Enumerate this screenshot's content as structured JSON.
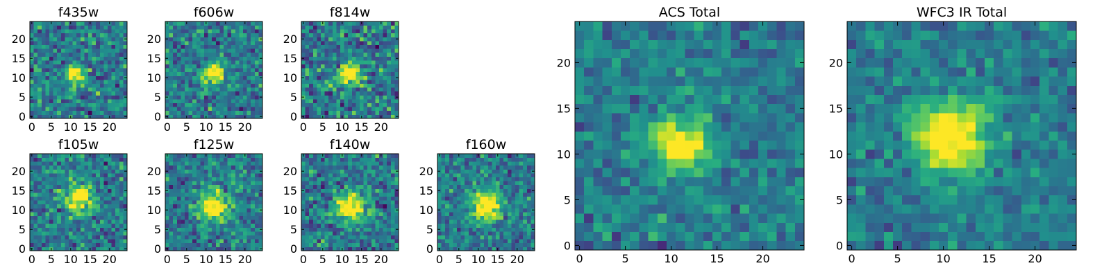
{
  "chart_data": [
    {
      "type": "heatmap",
      "title": "f435w",
      "colormap": "viridis",
      "grid_size": 25,
      "peak": [
        11,
        11
      ],
      "spread": 1.6,
      "noise": 0.45,
      "seed": 11,
      "xticks": [
        0,
        5,
        10,
        15,
        20
      ],
      "yticks": [
        0,
        5,
        10,
        15,
        20
      ],
      "xlim": [
        -0.5,
        24.5
      ],
      "ylim": [
        -0.5,
        24.5
      ]
    },
    {
      "type": "heatmap",
      "title": "f606w",
      "colormap": "viridis",
      "grid_size": 25,
      "peak": [
        12,
        11
      ],
      "spread": 1.8,
      "noise": 0.42,
      "seed": 23,
      "xticks": [
        0,
        5,
        10,
        15,
        20
      ],
      "yticks": [
        0,
        5,
        10,
        15,
        20
      ],
      "xlim": [
        -0.5,
        24.5
      ],
      "ylim": [
        -0.5,
        24.5
      ]
    },
    {
      "type": "heatmap",
      "title": "f814w",
      "colormap": "viridis",
      "grid_size": 25,
      "peak": [
        12,
        11
      ],
      "spread": 2.0,
      "noise": 0.5,
      "seed": 37,
      "xticks": [
        0,
        5,
        10,
        15,
        20
      ],
      "yticks": [
        0,
        5,
        10,
        15,
        20
      ],
      "xlim": [
        -0.5,
        24.5
      ],
      "ylim": [
        -0.5,
        24.5
      ]
    },
    {
      "type": "heatmap",
      "title": "f105w",
      "colormap": "viridis",
      "grid_size": 25,
      "peak": [
        12,
        13
      ],
      "spread": 2.4,
      "noise": 0.42,
      "seed": 41,
      "xticks": [
        0,
        5,
        10,
        15,
        20
      ],
      "yticks": [
        0,
        5,
        10,
        15,
        20
      ],
      "xlim": [
        -0.5,
        24.5
      ],
      "ylim": [
        -0.5,
        24.5
      ]
    },
    {
      "type": "heatmap",
      "title": "f125w",
      "colormap": "viridis",
      "grid_size": 25,
      "peak": [
        12,
        11
      ],
      "spread": 2.6,
      "noise": 0.4,
      "seed": 53,
      "xticks": [
        0,
        5,
        10,
        15,
        20
      ],
      "yticks": [
        0,
        5,
        10,
        15,
        20
      ],
      "xlim": [
        -0.5,
        24.5
      ],
      "ylim": [
        -0.5,
        24.5
      ]
    },
    {
      "type": "heatmap",
      "title": "f140w",
      "colormap": "viridis",
      "grid_size": 25,
      "peak": [
        12,
        11
      ],
      "spread": 2.6,
      "noise": 0.42,
      "seed": 67,
      "xticks": [
        0,
        5,
        10,
        15,
        20
      ],
      "yticks": [
        0,
        5,
        10,
        15,
        20
      ],
      "xlim": [
        -0.5,
        24.5
      ],
      "ylim": [
        -0.5,
        24.5
      ]
    },
    {
      "type": "heatmap",
      "title": "f160w",
      "colormap": "viridis",
      "grid_size": 25,
      "peak": [
        12,
        11
      ],
      "spread": 2.6,
      "noise": 0.38,
      "seed": 79,
      "xticks": [
        0,
        5,
        10,
        15,
        20
      ],
      "yticks": [
        0,
        5,
        10,
        15,
        20
      ],
      "xlim": [
        -0.5,
        24.5
      ],
      "ylim": [
        -0.5,
        24.5
      ]
    },
    {
      "type": "heatmap",
      "title": "ACS Total",
      "colormap": "viridis",
      "grid_size": 25,
      "peak": [
        11,
        11
      ],
      "spread": 2.0,
      "noise": 0.3,
      "seed": 97,
      "xticks": [
        0,
        5,
        10,
        15,
        20
      ],
      "yticks": [
        0,
        5,
        10,
        15,
        20
      ],
      "xlim": [
        -0.5,
        24.5
      ],
      "ylim": [
        -0.5,
        24.5
      ]
    },
    {
      "type": "heatmap",
      "title": "WFC3 IR Total",
      "colormap": "viridis",
      "grid_size": 25,
      "peak": [
        11,
        12
      ],
      "spread": 2.8,
      "noise": 0.28,
      "seed": 113,
      "xticks": [
        0,
        5,
        10,
        15,
        20
      ],
      "yticks": [
        0,
        5,
        10,
        15,
        20
      ],
      "xlim": [
        -0.5,
        24.5
      ],
      "ylim": [
        -0.5,
        24.5
      ]
    }
  ]
}
